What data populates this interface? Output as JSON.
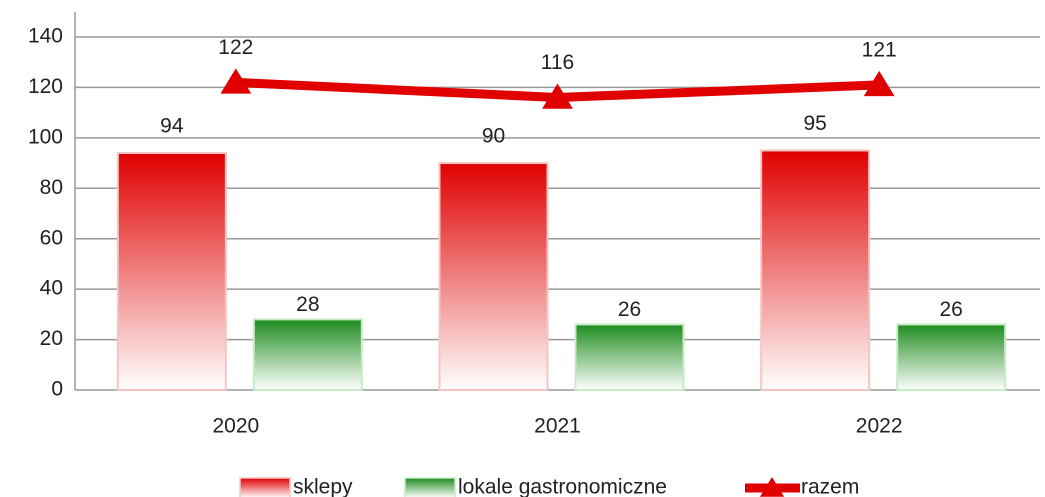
{
  "chart_data": {
    "type": "bar-line",
    "categories": [
      "2020",
      "2021",
      "2022"
    ],
    "series": [
      {
        "name": "sklepy",
        "type": "bar",
        "color": "#e00000",
        "values": [
          94,
          90,
          95
        ]
      },
      {
        "name": "lokale gastronomiczne",
        "type": "bar",
        "color": "#1e8c1e",
        "values": [
          28,
          26,
          26
        ]
      },
      {
        "name": "razem",
        "type": "line",
        "color": "#e00000",
        "values": [
          122,
          116,
          121
        ]
      }
    ],
    "ylim": [
      0,
      140
    ],
    "yticks": [
      0,
      20,
      40,
      60,
      80,
      100,
      120,
      140
    ],
    "grid": true,
    "legend": "bottom"
  }
}
